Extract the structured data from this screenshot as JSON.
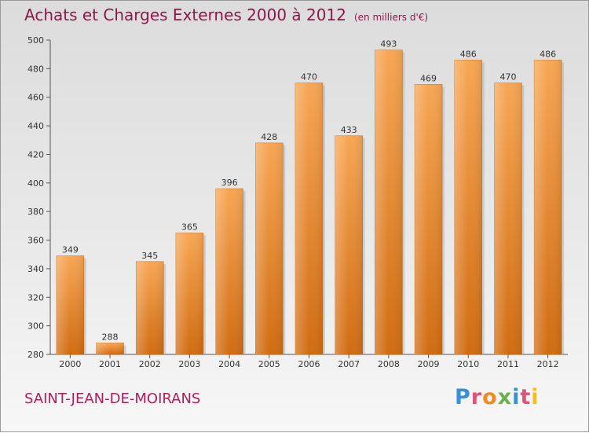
{
  "header": {
    "title": "Achats et Charges Externes 2000 à 2012",
    "unit": "(en milliers d'€)"
  },
  "footer": {
    "commune": "SAINT-JEAN-DE-MOIRANS",
    "logo": [
      "P",
      "r",
      "o",
      "x",
      "i",
      "t",
      "i"
    ]
  },
  "colors": {
    "title": "#8a1a4a",
    "commune": "#b01e5e",
    "bar_light": "#f7a654",
    "bar_dark": "#d06c12",
    "logo": [
      "#3b8fd4",
      "#e0527a",
      "#f08a24",
      "#6ab04c",
      "#3b8fd4",
      "#e0527a",
      "#f0c020"
    ]
  },
  "chart_data": {
    "type": "bar",
    "title": "Achats et Charges Externes 2000 à 2012",
    "subtitle": "(en milliers d'€)",
    "xlabel": "",
    "ylabel": "",
    "categories": [
      "2000",
      "2001",
      "2002",
      "2003",
      "2004",
      "2005",
      "2006",
      "2007",
      "2008",
      "2009",
      "2010",
      "2011",
      "2012"
    ],
    "values": [
      349,
      288,
      345,
      365,
      396,
      428,
      470,
      433,
      493,
      469,
      486,
      470,
      486
    ],
    "ylim": [
      280,
      500
    ],
    "yticks": [
      280,
      300,
      320,
      340,
      360,
      380,
      400,
      420,
      440,
      460,
      480,
      500
    ],
    "grid": false,
    "data_labels": true
  }
}
